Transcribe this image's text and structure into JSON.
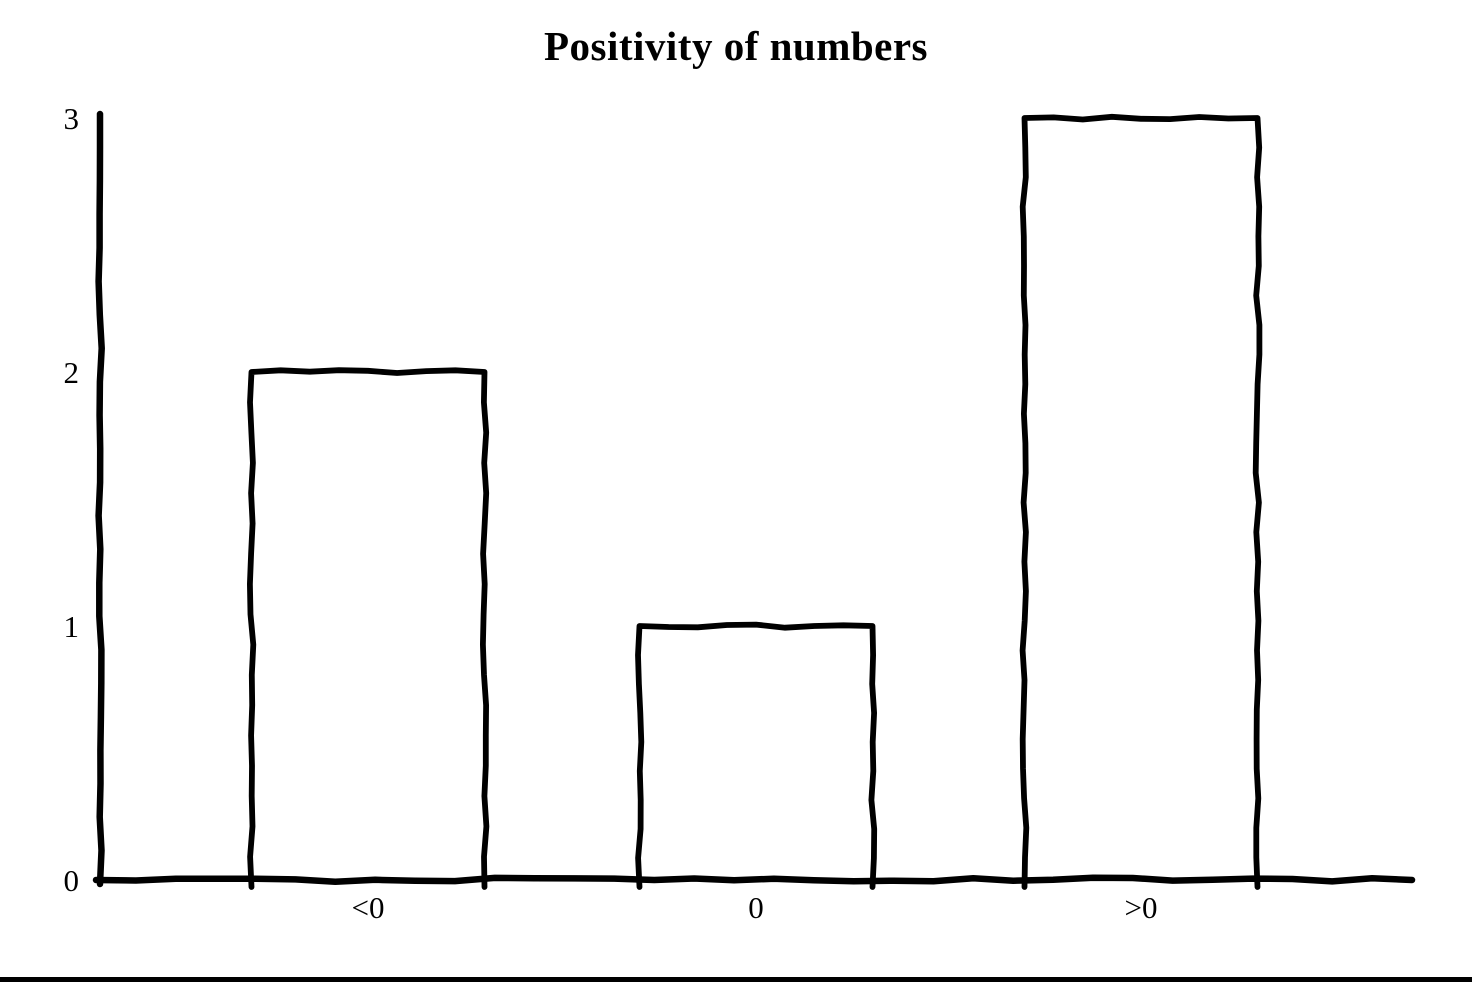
{
  "chart_data": {
    "type": "bar",
    "title": "Positivity of numbers",
    "categories": [
      "<0",
      "0",
      ">0"
    ],
    "values": [
      2,
      1,
      3
    ],
    "xlabel": "",
    "ylabel": "",
    "ylim": [
      0,
      3
    ],
    "yticks": [
      0,
      1,
      2,
      3
    ],
    "grid": false,
    "legend": null,
    "style": "hand-drawn-sketch",
    "bar_fill": "#ffffff",
    "stroke_color": "#000000",
    "background_color": "#ffffff",
    "bottom_rule_color": "#000000"
  }
}
